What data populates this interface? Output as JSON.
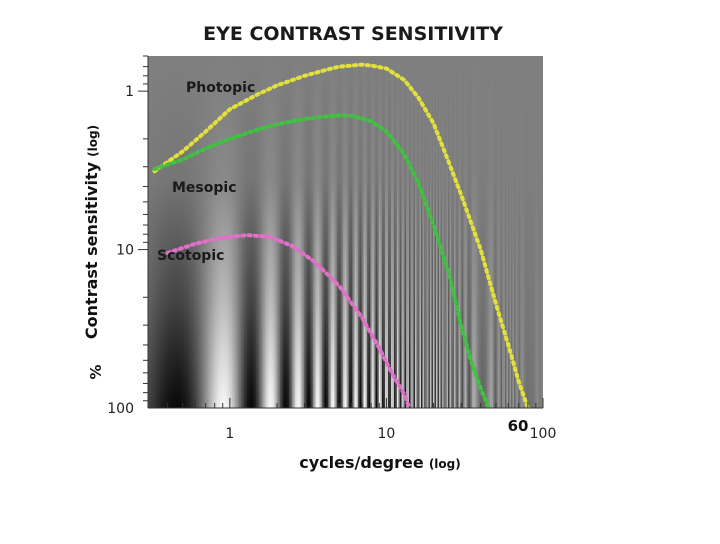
{
  "chart_data": {
    "type": "line",
    "title": "EYE CONTRAST SENSITIVITY",
    "xlabel": "cycles/degree",
    "xlabel_suffix": "(log)",
    "ylabel": "Contrast sensitivity",
    "ylabel_suffix": "(log)",
    "ylabel_unit": "%",
    "x_scale": "log",
    "y_scale": "log",
    "y_inverted": true,
    "xlim": [
      0.3,
      100
    ],
    "ylim": [
      0.6,
      100
    ],
    "x_ticks": [
      {
        "value": 1,
        "label": "1"
      },
      {
        "value": 10,
        "label": "10"
      },
      {
        "value": 100,
        "label": "100"
      }
    ],
    "x_marker": {
      "value": 60,
      "label": "60"
    },
    "y_ticks": [
      {
        "value": 1,
        "label": "1"
      },
      {
        "value": 10,
        "label": "10"
      },
      {
        "value": 100,
        "label": "100"
      }
    ],
    "background": "grating",
    "series": [
      {
        "name": "Photopic",
        "color": "#e2e03a",
        "points": [
          [
            0.33,
            3.2
          ],
          [
            0.5,
            2.4
          ],
          [
            0.7,
            1.8
          ],
          [
            1,
            1.3
          ],
          [
            1.5,
            1.05
          ],
          [
            2,
            0.92
          ],
          [
            3,
            0.8
          ],
          [
            4,
            0.74
          ],
          [
            5,
            0.7
          ],
          [
            6,
            0.69
          ],
          [
            7,
            0.68
          ],
          [
            8,
            0.69
          ],
          [
            10,
            0.72
          ],
          [
            13,
            0.85
          ],
          [
            16,
            1.1
          ],
          [
            20,
            1.6
          ],
          [
            25,
            2.8
          ],
          [
            30,
            4.5
          ],
          [
            40,
            10
          ],
          [
            50,
            22
          ],
          [
            60,
            40
          ],
          [
            70,
            68
          ],
          [
            80,
            100
          ]
        ]
      },
      {
        "name": "Mesopic",
        "color": "#3fc23f",
        "points": [
          [
            0.33,
            3.1
          ],
          [
            0.5,
            2.7
          ],
          [
            0.7,
            2.3
          ],
          [
            1,
            2.0
          ],
          [
            1.5,
            1.75
          ],
          [
            2,
            1.62
          ],
          [
            3,
            1.5
          ],
          [
            4,
            1.45
          ],
          [
            5,
            1.42
          ],
          [
            6,
            1.43
          ],
          [
            8,
            1.55
          ],
          [
            10,
            1.8
          ],
          [
            13,
            2.5
          ],
          [
            16,
            3.8
          ],
          [
            20,
            7
          ],
          [
            25,
            14
          ],
          [
            30,
            30
          ],
          [
            35,
            52
          ],
          [
            40,
            75
          ],
          [
            45,
            100
          ]
        ]
      },
      {
        "name": "Scotopic",
        "color": "#e070c8",
        "points": [
          [
            0.4,
            10.5
          ],
          [
            0.6,
            9.2
          ],
          [
            0.8,
            8.6
          ],
          [
            1,
            8.3
          ],
          [
            1.3,
            8.1
          ],
          [
            1.8,
            8.3
          ],
          [
            2.5,
            9.5
          ],
          [
            3.5,
            12
          ],
          [
            5,
            17
          ],
          [
            7,
            27
          ],
          [
            9,
            42
          ],
          [
            11,
            62
          ],
          [
            13,
            82
          ],
          [
            14,
            100
          ]
        ]
      }
    ]
  }
}
